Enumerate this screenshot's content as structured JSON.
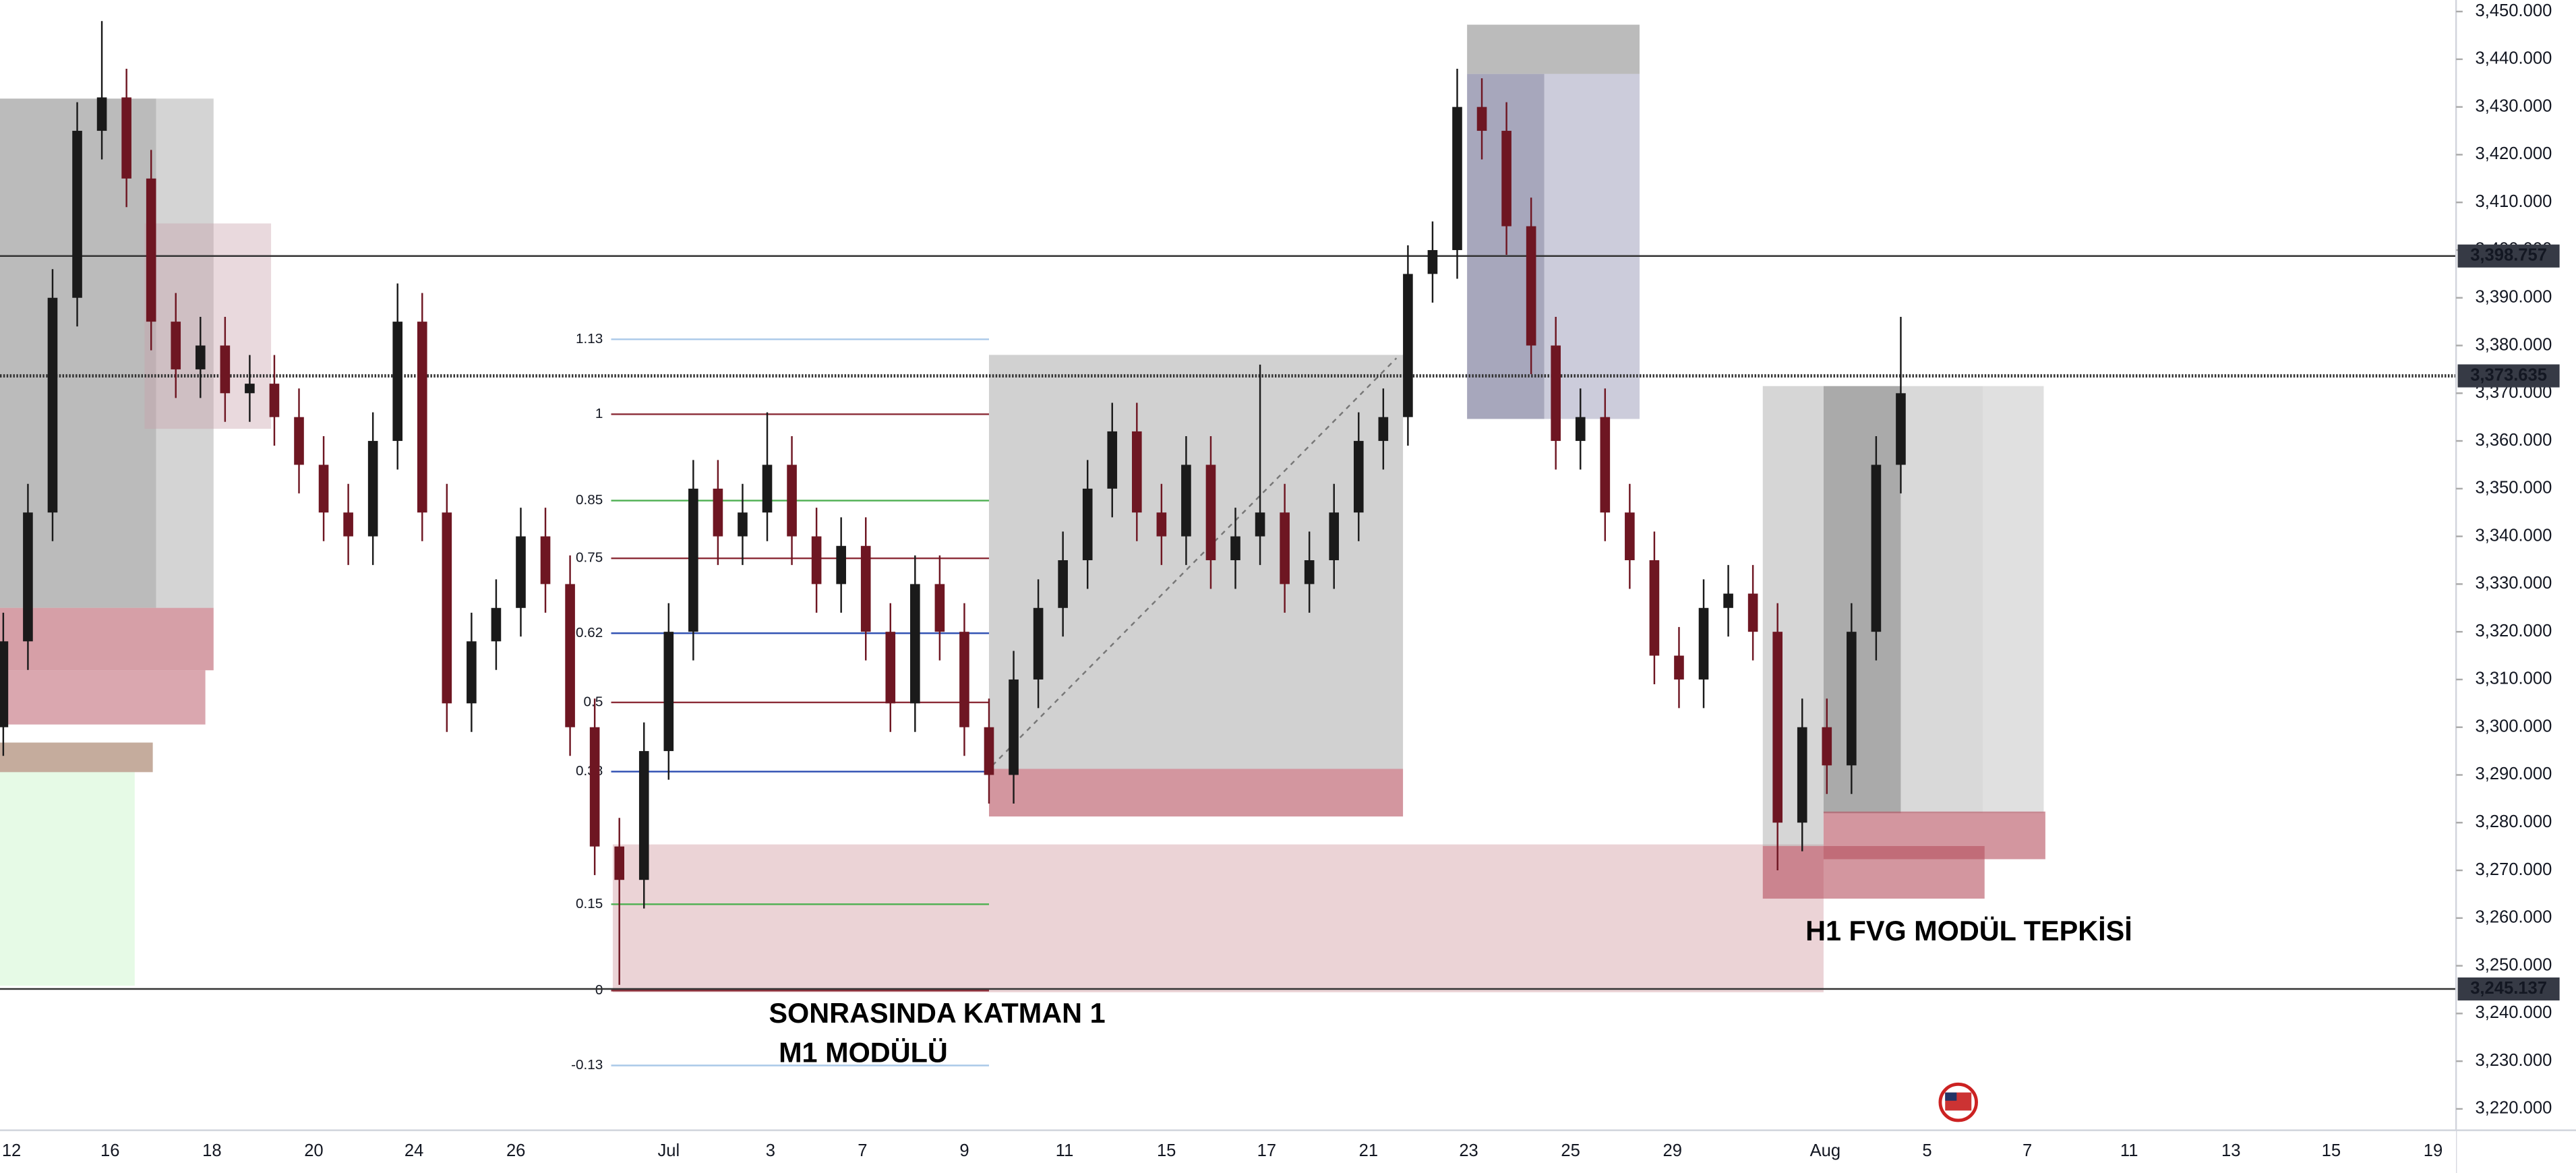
{
  "chart_data": {
    "type": "candlestick",
    "ylim": [
      3220,
      3450
    ],
    "yticks": [
      {
        "value": 3220,
        "label": "3,220.000"
      },
      {
        "value": 3230,
        "label": "3,230.000"
      },
      {
        "value": 3240,
        "label": "3,240.000"
      },
      {
        "value": 3250,
        "label": "3,250.000"
      },
      {
        "value": 3260,
        "label": "3,260.000"
      },
      {
        "value": 3270,
        "label": "3,270.000"
      },
      {
        "value": 3280,
        "label": "3,280.000"
      },
      {
        "value": 3290,
        "label": "3,290.000"
      },
      {
        "value": 3300,
        "label": "3,300.000"
      },
      {
        "value": 3310,
        "label": "3,310.000"
      },
      {
        "value": 3320,
        "label": "3,320.000"
      },
      {
        "value": 3330,
        "label": "3,330.000"
      },
      {
        "value": 3340,
        "label": "3,340.000"
      },
      {
        "value": 3350,
        "label": "3,350.000"
      },
      {
        "value": 3360,
        "label": "3,360.000"
      },
      {
        "value": 3370,
        "label": "3,370.000"
      },
      {
        "value": 3380,
        "label": "3,380.000"
      },
      {
        "value": 3390,
        "label": "3,390.000"
      },
      {
        "value": 3400,
        "label": "3,400.000"
      },
      {
        "value": 3410,
        "label": "3,410.000"
      },
      {
        "value": 3420,
        "label": "3,420.000"
      },
      {
        "value": 3430,
        "label": "3,430.000"
      },
      {
        "value": 3440,
        "label": "3,440.000"
      },
      {
        "value": 3450,
        "label": "3,450.000"
      }
    ],
    "x_labels": [
      "12",
      "16",
      "18",
      "20",
      "24",
      "26",
      "Jul",
      "3",
      "7",
      "9",
      "11",
      "15",
      "17",
      "21",
      "23",
      "25",
      "29",
      "Aug",
      "5",
      "7",
      "11",
      "13",
      "15",
      "19"
    ],
    "up_color": "#1a1a1a",
    "down_color": "#6e1622",
    "open": [
      3300,
      3318,
      3345,
      3390,
      3425,
      3432,
      3415,
      3385,
      3375,
      3380,
      3370,
      3372,
      3365,
      3355,
      3345,
      3340,
      3360,
      3385,
      3345,
      3305,
      3318,
      3325,
      3340,
      3330,
      3300,
      3275,
      3268,
      3295,
      3320,
      3350,
      3340,
      3345,
      3355,
      3340,
      3330,
      3338,
      3320,
      3305,
      3330,
      3320,
      3300,
      3290,
      3310,
      3325,
      3335,
      3350,
      3362,
      3345,
      3340,
      3355,
      3335,
      3340,
      3345,
      3330,
      3335,
      3345,
      3360,
      3365,
      3395,
      3400,
      3430,
      3425,
      3405,
      3380,
      3360,
      3365,
      3345,
      3335,
      3315,
      3310,
      3325,
      3328,
      3320,
      3280,
      3300,
      3292,
      3320,
      3355
    ],
    "high": [
      3324,
      3351,
      3396,
      3431,
      3448,
      3438,
      3421,
      3391,
      3386,
      3386,
      3378,
      3378,
      3371,
      3361,
      3351,
      3366,
      3393,
      3391,
      3351,
      3324,
      3331,
      3346,
      3346,
      3336,
      3306,
      3281,
      3301,
      3326,
      3356,
      3356,
      3351,
      3366,
      3361,
      3346,
      3344,
      3344,
      3326,
      3336,
      3336,
      3326,
      3306,
      3316,
      3331,
      3341,
      3356,
      3368,
      3368,
      3351,
      3361,
      3361,
      3346,
      3376,
      3351,
      3341,
      3351,
      3366,
      3371,
      3401,
      3406,
      3438,
      3436,
      3431,
      3411,
      3386,
      3371,
      3371,
      3351,
      3341,
      3321,
      3331,
      3334,
      3334,
      3326,
      3306,
      3306,
      3326,
      3361,
      3386
    ],
    "low": [
      3294,
      3312,
      3339,
      3384,
      3419,
      3409,
      3379,
      3369,
      3369,
      3364,
      3364,
      3359,
      3349,
      3339,
      3334,
      3334,
      3354,
      3339,
      3299,
      3299,
      3312,
      3319,
      3324,
      3294,
      3269,
      3246,
      3262,
      3289,
      3314,
      3334,
      3334,
      3339,
      3334,
      3324,
      3324,
      3314,
      3299,
      3299,
      3314,
      3294,
      3284,
      3284,
      3304,
      3319,
      3329,
      3344,
      3339,
      3334,
      3334,
      3329,
      3329,
      3334,
      3324,
      3324,
      3329,
      3339,
      3354,
      3359,
      3389,
      3394,
      3419,
      3399,
      3374,
      3354,
      3354,
      3339,
      3329,
      3309,
      3304,
      3304,
      3319,
      3314,
      3270,
      3274,
      3286,
      3286,
      3314,
      3349
    ],
    "close": [
      3318,
      3345,
      3390,
      3425,
      3432,
      3415,
      3385,
      3375,
      3380,
      3370,
      3372,
      3365,
      3355,
      3345,
      3340,
      3360,
      3385,
      3345,
      3305,
      3318,
      3325,
      3340,
      3330,
      3300,
      3275,
      3268,
      3295,
      3320,
      3350,
      3340,
      3345,
      3355,
      3340,
      3330,
      3338,
      3320,
      3305,
      3330,
      3320,
      3300,
      3290,
      3310,
      3325,
      3335,
      3350,
      3362,
      3345,
      3340,
      3355,
      3335,
      3340,
      3345,
      3330,
      3335,
      3345,
      3360,
      3365,
      3395,
      3400,
      3430,
      3425,
      3405,
      3380,
      3360,
      3365,
      3345,
      3335,
      3315,
      3310,
      3325,
      3328,
      3320,
      3280,
      3300,
      3292,
      3320,
      3355,
      3370
    ],
    "price_lines": [
      {
        "value": 3398.757,
        "label": "3,398.757",
        "style": "solid"
      },
      {
        "value": 3373.635,
        "label": "3,373.635",
        "style": "dotted"
      },
      {
        "value": 3245.137,
        "label": "3,245.137",
        "style": "solid"
      }
    ],
    "fib": {
      "ratios": [
        1.13,
        1,
        0.85,
        0.75,
        0.62,
        0.5,
        0.38,
        0.15,
        0,
        -0.13
      ],
      "prices": [
        3381.3,
        3365.6,
        3347.5,
        3335.4,
        3319.7,
        3305.2,
        3290.7,
        3262.9,
        3244.8,
        3229.1
      ],
      "colors": [
        "#a9c8e8",
        "#8b2b36",
        "#4caf50",
        "#8b2b36",
        "#2a4bb0",
        "#8b2b36",
        "#2a4bb0",
        "#4caf50",
        "#8b2b36",
        "#a9c8e8"
      ]
    },
    "annotations": [
      "SONRASINDA KATMAN 1",
      "M1 MODÜLÜ",
      "H1 FVG MODÜL TEPKİSİ"
    ]
  }
}
